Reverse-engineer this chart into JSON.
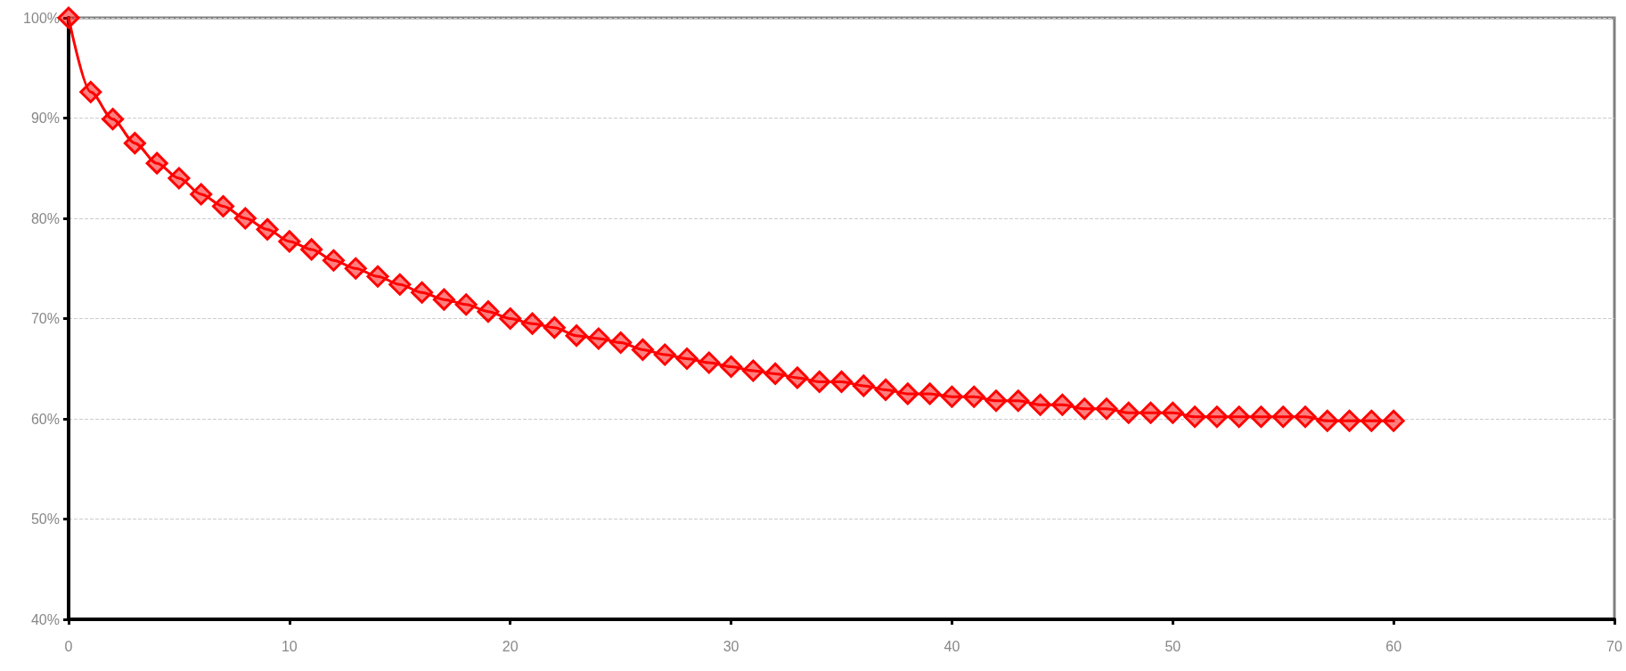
{
  "chart_data": {
    "type": "line",
    "marker": "diamond",
    "line_style": "solid",
    "grid": "y",
    "x": [
      0,
      1,
      2,
      3,
      4,
      5,
      6,
      7,
      8,
      9,
      10,
      11,
      12,
      13,
      14,
      15,
      16,
      17,
      18,
      19,
      20,
      21,
      22,
      23,
      24,
      25,
      26,
      27,
      28,
      29,
      30,
      31,
      32,
      33,
      34,
      35,
      36,
      37,
      38,
      39,
      40,
      41,
      42,
      43,
      44,
      45,
      46,
      47,
      48,
      49,
      50,
      51,
      52,
      53,
      54,
      55,
      56,
      57,
      58,
      59,
      60
    ],
    "series": [
      {
        "color": "#ff0000",
        "values": [
          100,
          92.6,
          89.9,
          87.5,
          85.5,
          84.0,
          82.4,
          81.2,
          80.0,
          78.9,
          77.7,
          76.9,
          75.8,
          75.0,
          74.2,
          73.4,
          72.6,
          71.9,
          71.4,
          70.7,
          70.0,
          69.5,
          69.1,
          68.3,
          68.0,
          67.6,
          66.9,
          66.4,
          66.0,
          65.6,
          65.2,
          64.8,
          64.5,
          64.1,
          63.7,
          63.7,
          63.3,
          62.9,
          62.5,
          62.5,
          62.2,
          62.2,
          61.8,
          61.8,
          61.4,
          61.4,
          61.0,
          61.0,
          60.6,
          60.6,
          60.6,
          60.2,
          60.2,
          60.2,
          60.2,
          60.2,
          60.2,
          59.8,
          59.8,
          59.8,
          59.8
        ]
      }
    ],
    "xlim": [
      0,
      70
    ],
    "xticks": [
      0,
      10,
      20,
      30,
      40,
      50,
      60,
      70
    ],
    "ylim": [
      40,
      100
    ],
    "yticks": [
      {
        "value": 40,
        "label": "40%"
      },
      {
        "value": 50,
        "label": "50%"
      },
      {
        "value": 60,
        "label": "60%"
      },
      {
        "value": 70,
        "label": "70%"
      },
      {
        "value": 80,
        "label": "80%"
      },
      {
        "value": 90,
        "label": "90%"
      },
      {
        "value": 100,
        "label": "100%"
      }
    ]
  }
}
